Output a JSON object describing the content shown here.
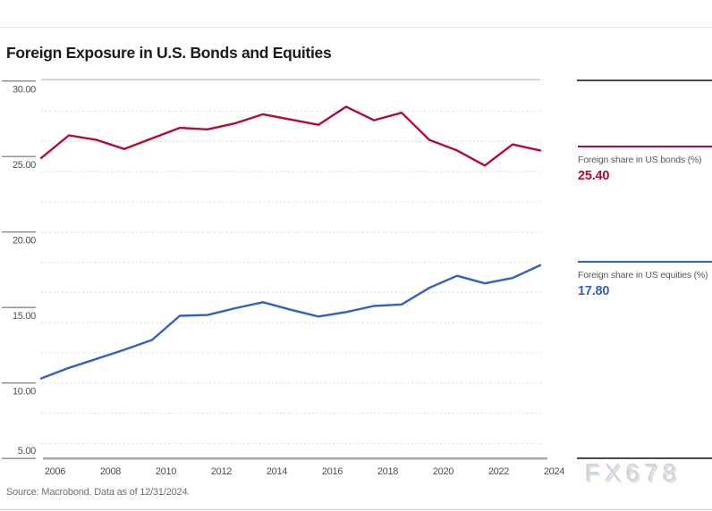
{
  "page": {
    "title": "Foreign Exposure in U.S. Bonds and Equities",
    "source_note": "Source: Macrobond. Data as of 12/31/2024.",
    "watermark": "FX678"
  },
  "colors": {
    "bonds_line": "#B00D33",
    "equities_line": "#3361C2",
    "minor_grid": "#DBDBDB",
    "plot_top_border": "#C6C6C6",
    "x_axis": "#A8A8A8",
    "tick_stub": "#8A8A8A",
    "tick_text": "#474E58",
    "legend_label_text": "#595959",
    "panel_rule": "#4A4A4A"
  },
  "chart_data": {
    "type": "line",
    "title": "Foreign Exposure in U.S. Bonds and Equities",
    "x": [
      2006,
      2007,
      2008,
      2009,
      2010,
      2011,
      2012,
      2013,
      2014,
      2015,
      2016,
      2017,
      2018,
      2019,
      2020,
      2021,
      2022,
      2023,
      2024
    ],
    "x_tick_labels": [
      "2006",
      "2008",
      "2010",
      "2012",
      "2014",
      "2016",
      "2018",
      "2020",
      "2022",
      "2024"
    ],
    "y_major_ticks": [
      30,
      25,
      20,
      15,
      10,
      5
    ],
    "y_tick_labels": [
      "30.00",
      "25.00",
      "20.00",
      "15.00",
      "10.00",
      "5.00"
    ],
    "y_minor_ticks": [
      28,
      26,
      24,
      22,
      20,
      18,
      16,
      14,
      12,
      10,
      8,
      6
    ],
    "ylim": [
      5,
      30
    ],
    "grid": "horizontal dotted minor gridlines every 2 units",
    "legend_position": "right",
    "series": [
      {
        "name": "Foreign share in US bonds (%)",
        "display_value": "25.40",
        "color": "#B00D33",
        "values": [
          24.9,
          26.4,
          26.1,
          25.5,
          26.2,
          26.9,
          26.8,
          27.2,
          27.8,
          27.45,
          27.1,
          28.3,
          27.4,
          27.9,
          26.1,
          25.4,
          24.4,
          25.8,
          25.4
        ]
      },
      {
        "name": "Foreign share in US equities (%)",
        "display_value": "17.80",
        "color": "#3361C2",
        "values": [
          10.3,
          11.0,
          11.6,
          12.2,
          12.85,
          14.45,
          14.5,
          14.95,
          15.35,
          14.85,
          14.4,
          14.7,
          15.1,
          15.2,
          16.3,
          17.1,
          16.6,
          16.95,
          17.8
        ]
      }
    ]
  }
}
